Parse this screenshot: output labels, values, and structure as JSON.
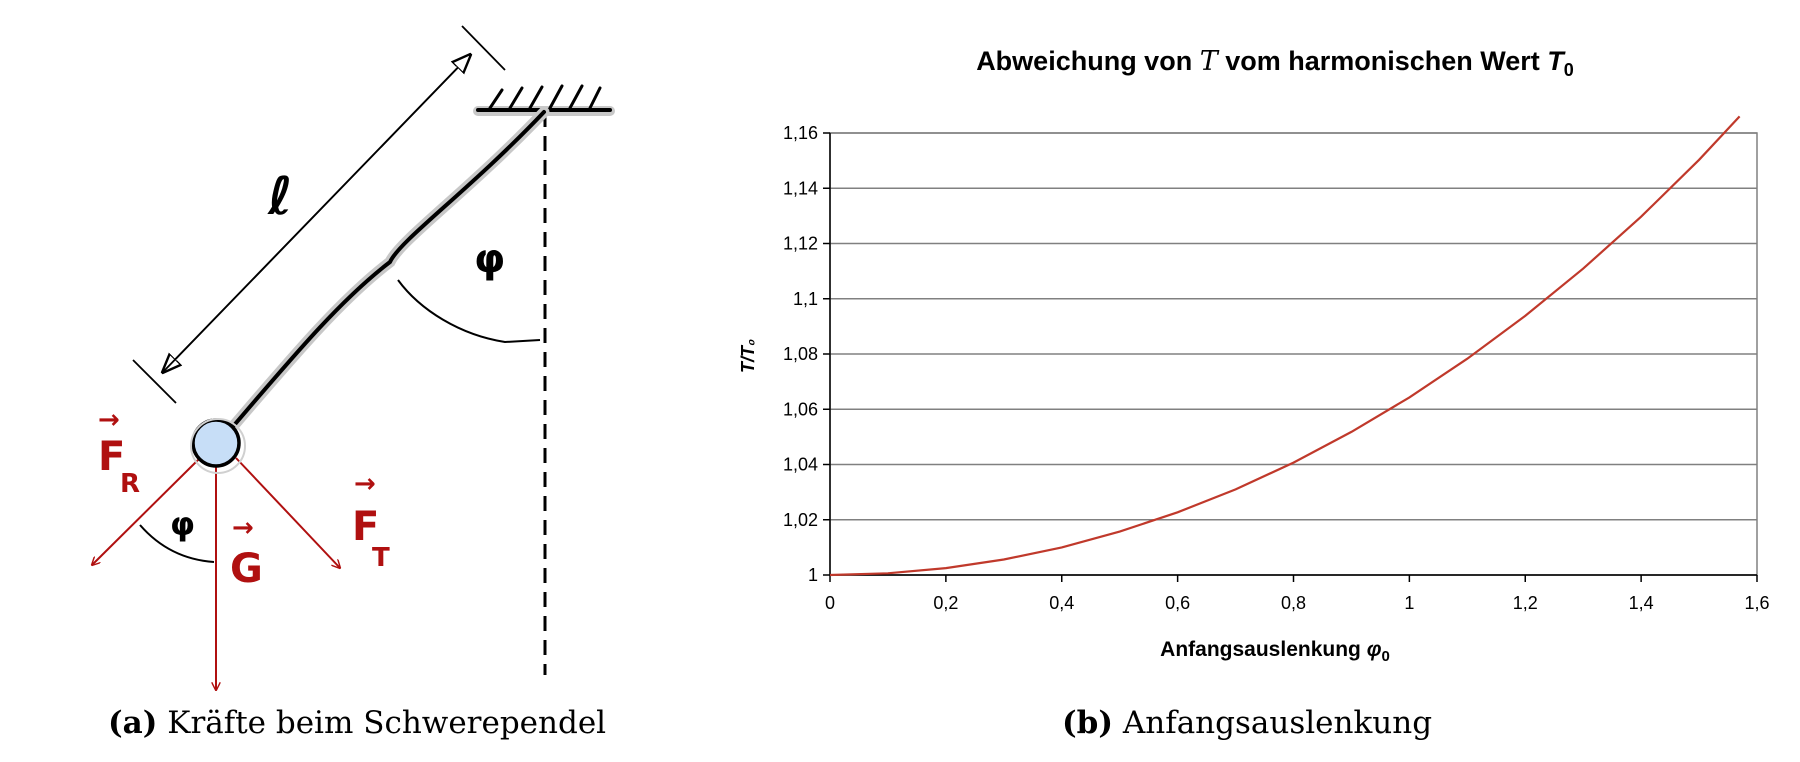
{
  "figure_a": {
    "labels": {
      "length": "ℓ",
      "angle_top": "φ",
      "angle_bottom": "φ",
      "force_restoring": "F",
      "force_restoring_sub": "R",
      "force_tangential": "F",
      "force_tangential_sub": "T",
      "gravity": "G",
      "vector_arrow": "→"
    },
    "colors": {
      "force": "#b01010",
      "bob": "#c7def7",
      "ink": "#000000"
    },
    "caption": {
      "tag": "(a)",
      "text": "Kräfte beim Schwerependel"
    }
  },
  "figure_b": {
    "caption": {
      "tag": "(b)",
      "text": "Anfangsauslenkung"
    },
    "title_parts": {
      "prefix": "Abweichung von ",
      "symbol": "T",
      "middle": " vom harmonischen Wert ",
      "sym2": "T",
      "sub2": "0"
    },
    "xlabel_parts": {
      "text": "Anfangsauslenkung ",
      "symbol": "φ",
      "sub": "0"
    },
    "ylabel": "T/T₀",
    "colors": {
      "curve": "#c0392b",
      "grid": "#808080"
    }
  },
  "chart_data": {
    "type": "line",
    "x": [
      0,
      0.1,
      0.2,
      0.3,
      0.4,
      0.5,
      0.6,
      0.7,
      0.8,
      0.9,
      1.0,
      1.1,
      1.2,
      1.3,
      1.4,
      1.5,
      1.57
    ],
    "series": [
      {
        "values": [
          1.0,
          1.0006,
          1.0025,
          1.0056,
          1.01,
          1.0157,
          1.0227,
          1.031,
          1.0407,
          1.0518,
          1.0643,
          1.0783,
          1.0938,
          1.1109,
          1.1297,
          1.1503,
          1.166
        ]
      }
    ],
    "xlim": [
      0,
      1.6
    ],
    "ylim": [
      1,
      1.16
    ],
    "xticks": [
      "0",
      "0,2",
      "0,4",
      "0,6",
      "0,8",
      "1",
      "1,2",
      "1,4",
      "1,6"
    ],
    "yticks": [
      "1",
      "1,02",
      "1,04",
      "1,06",
      "1,08",
      "1,1",
      "1,12",
      "1,14",
      "1,16"
    ],
    "grid": "horizontal"
  }
}
